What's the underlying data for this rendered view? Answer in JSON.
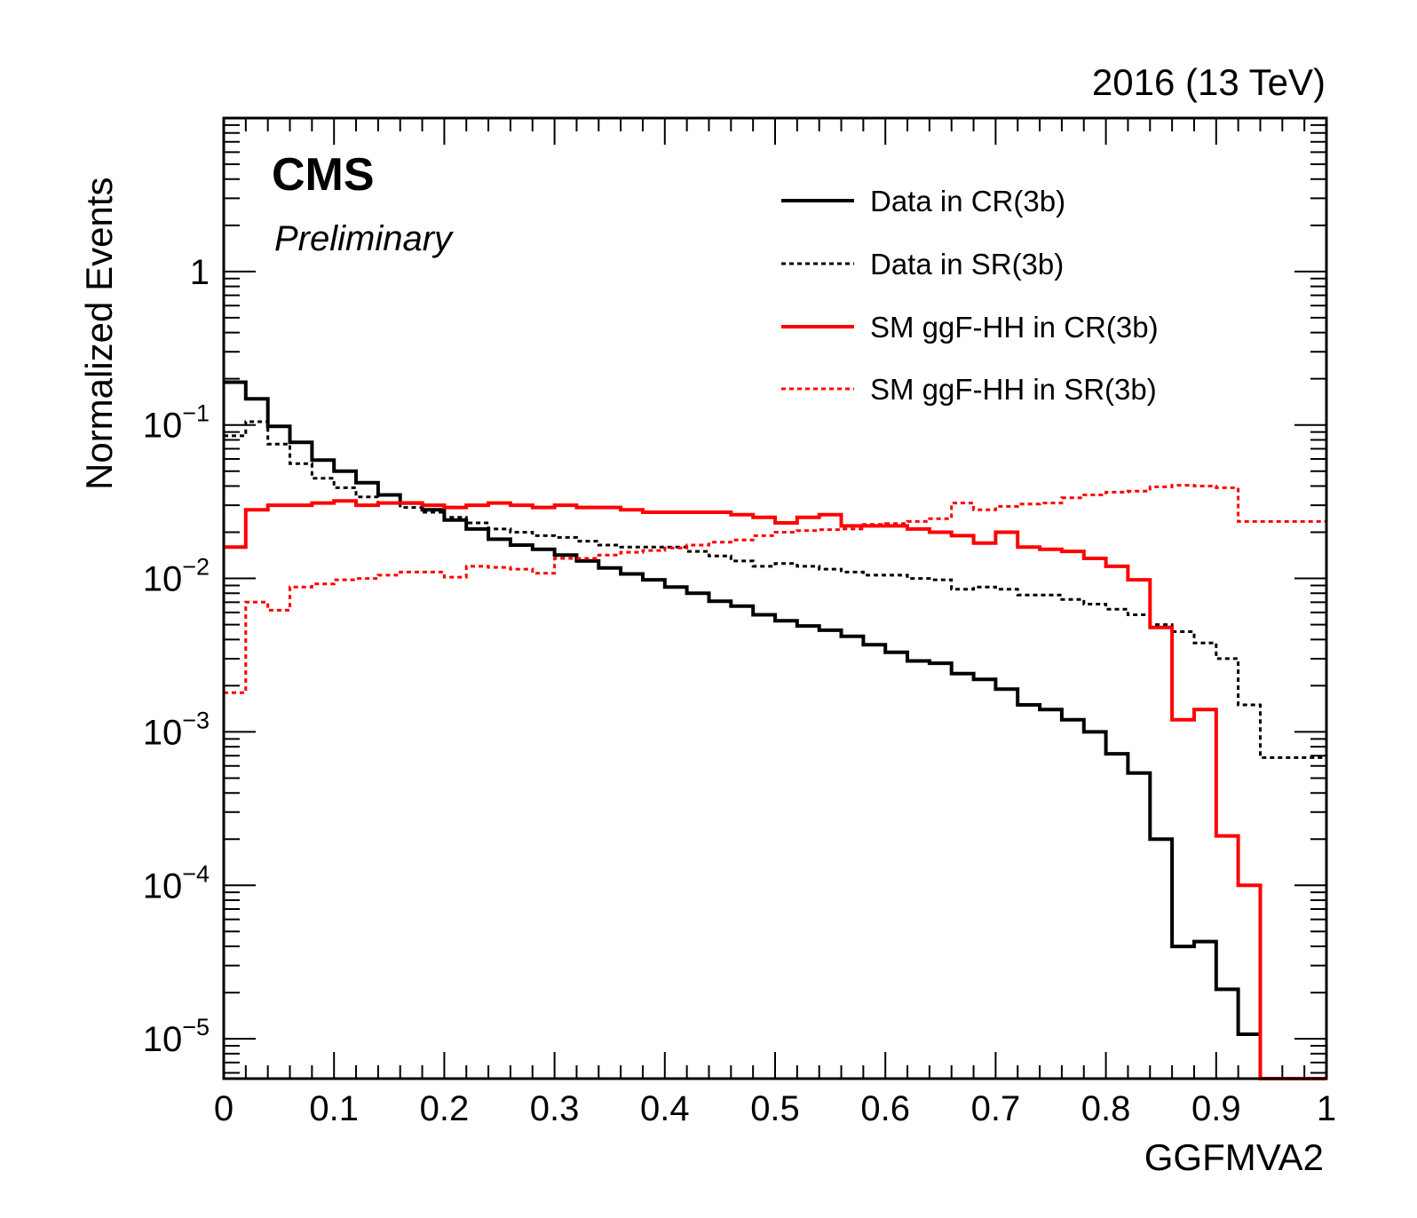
{
  "chart_data": {
    "type": "line",
    "drawstyle": "steps",
    "title": "",
    "lumi_label": "2016 (13 TeV)",
    "experiment_label": "CMS",
    "status_label": "Preliminary",
    "xlabel": "GGFMVA2",
    "ylabel": "Normalized Events",
    "xlim": [
      0,
      1
    ],
    "ylim": [
      5.5e-06,
      10
    ],
    "yscale": "log",
    "grid": false,
    "legend_position": "top-right",
    "x_ticks": [
      "0",
      "0.1",
      "0.2",
      "0.3",
      "0.4",
      "0.5",
      "0.6",
      "0.7",
      "0.8",
      "0.9",
      "1"
    ],
    "y_ticks": [
      {
        "base": "10",
        "exp": "−5",
        "value": 1e-05
      },
      {
        "base": "10",
        "exp": "−4",
        "value": 0.0001
      },
      {
        "base": "10",
        "exp": "−3",
        "value": 0.001
      },
      {
        "base": "10",
        "exp": "−2",
        "value": 0.01
      },
      {
        "base": "10",
        "exp": "−1",
        "value": 0.1
      },
      {
        "base": "1",
        "exp": "",
        "value": 1
      }
    ],
    "bin_edges": [
      0,
      0.02,
      0.04,
      0.06,
      0.08,
      0.1,
      0.12,
      0.14,
      0.16,
      0.18,
      0.2,
      0.22,
      0.24,
      0.26,
      0.28,
      0.3,
      0.32,
      0.34,
      0.36,
      0.38,
      0.4,
      0.42,
      0.44,
      0.46,
      0.48,
      0.5,
      0.52,
      0.54,
      0.56,
      0.58,
      0.6,
      0.62,
      0.64,
      0.66,
      0.68,
      0.7,
      0.72,
      0.74,
      0.76,
      0.78,
      0.8,
      0.82,
      0.84,
      0.86,
      0.88,
      0.9,
      0.92,
      0.94,
      0.96,
      0.98,
      1.0
    ],
    "series": [
      {
        "name": "Data in CR(3b)",
        "color": "#000000",
        "style": "solid",
        "values": [
          0.19,
          0.148,
          0.098,
          0.077,
          0.059,
          0.05,
          0.042,
          0.035,
          0.031,
          0.028,
          0.024,
          0.021,
          0.018,
          0.0165,
          0.0155,
          0.0142,
          0.013,
          0.0117,
          0.0107,
          0.0098,
          0.0088,
          0.008,
          0.0071,
          0.0066,
          0.0058,
          0.0053,
          0.0049,
          0.0046,
          0.0042,
          0.0037,
          0.0033,
          0.0029,
          0.0028,
          0.0024,
          0.0022,
          0.0019,
          0.0015,
          0.0014,
          0.0012,
          0.001,
          0.00072,
          0.00054,
          0.0002,
          4e-05,
          4.3e-05,
          2.1e-05,
          1.07e-05,
          null,
          null,
          null
        ]
      },
      {
        "name": "Data in SR(3b)",
        "color": "#000000",
        "style": "dotted",
        "values": [
          0.085,
          0.105,
          0.075,
          0.056,
          0.045,
          0.039,
          0.034,
          0.031,
          0.029,
          0.027,
          0.025,
          0.023,
          0.021,
          0.02,
          0.019,
          0.0185,
          0.0175,
          0.0165,
          0.016,
          0.016,
          0.016,
          0.015,
          0.014,
          0.013,
          0.012,
          0.0125,
          0.012,
          0.0115,
          0.011,
          0.0105,
          0.0105,
          0.01,
          0.0098,
          0.0085,
          0.0088,
          0.0085,
          0.0078,
          0.0078,
          0.0073,
          0.0068,
          0.0063,
          0.0058,
          0.005,
          0.0045,
          0.0038,
          0.003,
          0.0015,
          0.00068,
          0.00068,
          0.00068
        ]
      },
      {
        "name": "SM ggF-HH in CR(3b)",
        "color": "#ff0000",
        "style": "solid",
        "values": [
          0.016,
          0.028,
          0.03,
          0.03,
          0.031,
          0.032,
          0.03,
          0.031,
          0.031,
          0.03,
          0.029,
          0.03,
          0.031,
          0.03,
          0.029,
          0.03,
          0.029,
          0.029,
          0.028,
          0.027,
          0.027,
          0.027,
          0.027,
          0.026,
          0.025,
          0.023,
          0.025,
          0.026,
          0.022,
          0.022,
          0.022,
          0.021,
          0.02,
          0.019,
          0.017,
          0.02,
          0.016,
          0.0155,
          0.015,
          0.0135,
          0.012,
          0.0098,
          0.0048,
          0.0012,
          0.0014,
          0.00021,
          0.0001,
          null,
          null,
          null
        ]
      },
      {
        "name": "SM ggF-HH in SR(3b)",
        "color": "#ff0000",
        "style": "dotted",
        "values": [
          0.0018,
          0.007,
          0.0062,
          0.0088,
          0.0092,
          0.0098,
          0.01,
          0.0105,
          0.011,
          0.011,
          0.0102,
          0.012,
          0.0118,
          0.0115,
          0.0108,
          0.0135,
          0.0135,
          0.0142,
          0.0148,
          0.0152,
          0.0158,
          0.0165,
          0.0172,
          0.0178,
          0.019,
          0.02,
          0.0205,
          0.0208,
          0.021,
          0.0225,
          0.0228,
          0.0235,
          0.0245,
          0.031,
          0.028,
          0.0295,
          0.0305,
          0.031,
          0.0335,
          0.035,
          0.0365,
          0.037,
          0.0395,
          0.0405,
          0.04,
          0.039,
          0.0235,
          0.0235,
          0.0235,
          0.0235
        ]
      }
    ]
  }
}
